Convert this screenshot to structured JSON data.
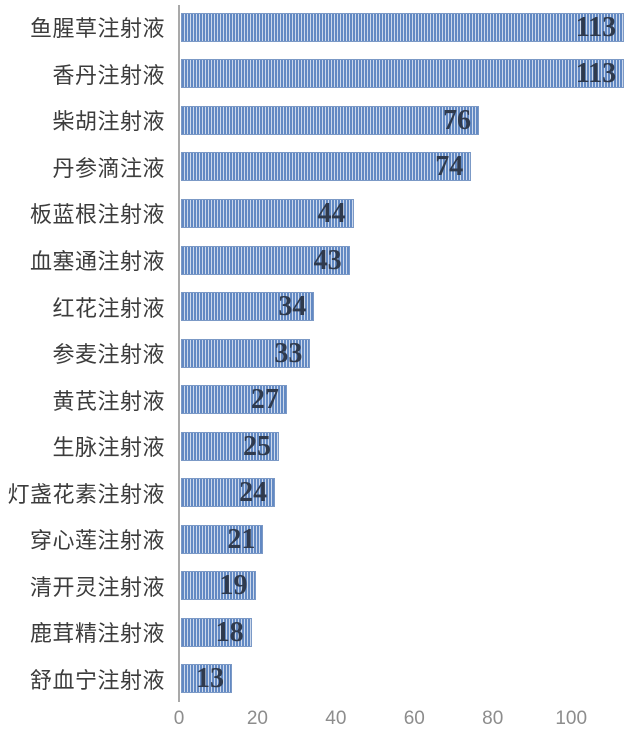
{
  "chart_data": {
    "type": "bar",
    "orientation": "horizontal",
    "title": "",
    "xlabel": "",
    "ylabel": "",
    "categories": [
      "鱼腥草注射液",
      "香丹注射液",
      "柴胡注射液",
      "丹参滴注液",
      "板蓝根注射液",
      "血塞通注射液",
      "红花注射液",
      "参麦注射液",
      "黄芪注射液",
      "生脉注射液",
      "灯盏花素注射液",
      "穿心莲注射液",
      "清开灵注射液",
      "鹿茸精注射液",
      "舒血宁注射液"
    ],
    "values": [
      113,
      113,
      76,
      74,
      44,
      43,
      34,
      33,
      27,
      25,
      24,
      21,
      19,
      18,
      13
    ],
    "x_ticks": [
      0,
      20,
      40,
      60,
      80,
      100
    ],
    "xlim": [
      0,
      115
    ],
    "grid": false,
    "legend": false,
    "value_labels_position": "inside-end",
    "colors": {
      "bar_stripe": "#6289c3",
      "bar_stripe_light": "#cdd9ec",
      "bar_border": "#7b99c6",
      "value_label": "#2f3a4d",
      "category_label": "#3c3c3c",
      "axis_line": "#a9a9a9",
      "tick_label": "#8d8d8d",
      "background": "#ffffff"
    }
  }
}
